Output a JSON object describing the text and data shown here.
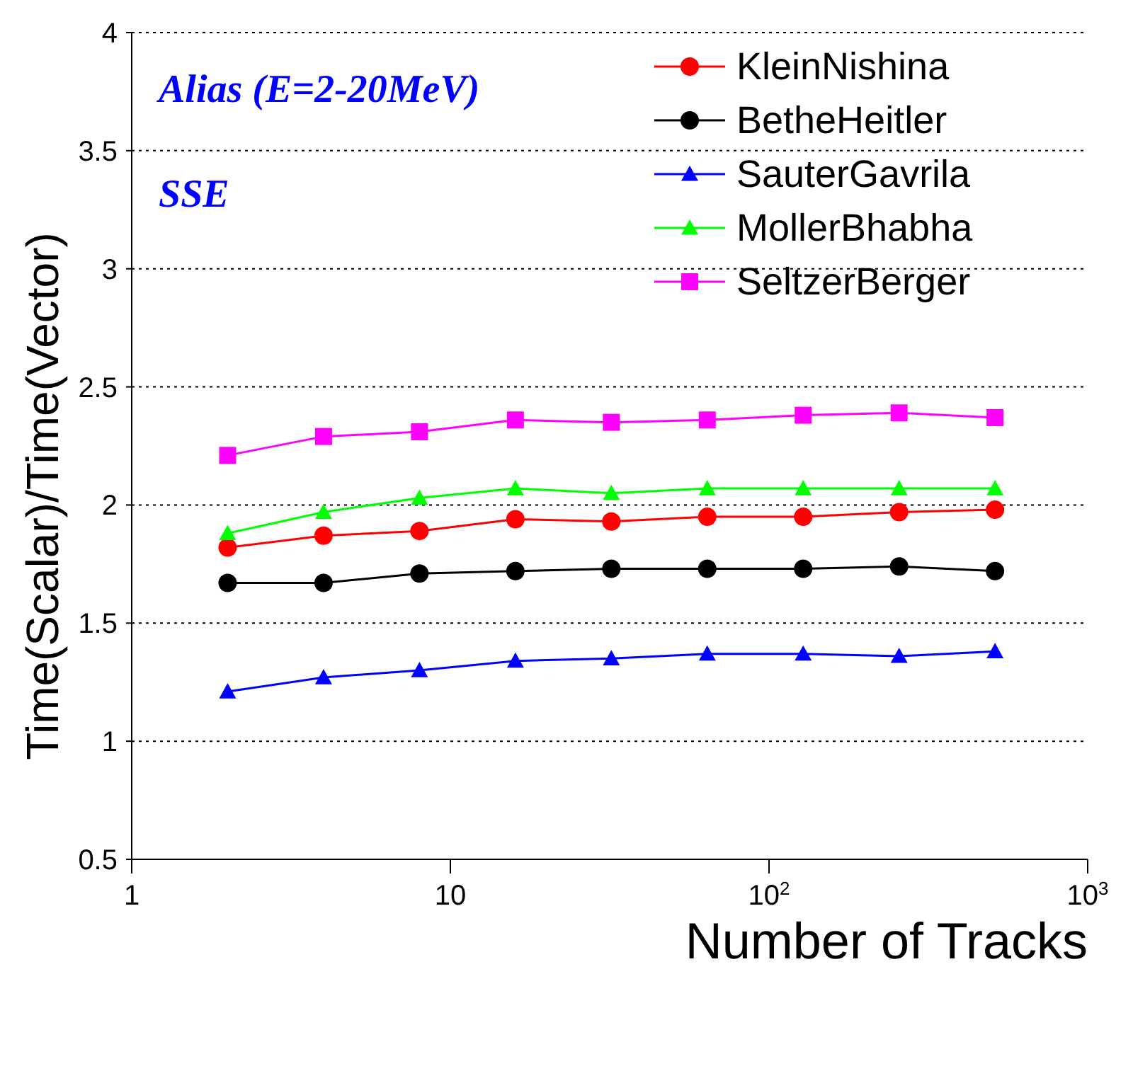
{
  "chart_data": {
    "type": "line",
    "xlabel": "Number of Tracks",
    "ylabel": "Time(Scalar)/Time(Vector)",
    "log": "x",
    "grid": "y",
    "legend": "top right",
    "line_style": "solid",
    "annotations": [
      "Alias (E=2-20MeV)",
      "SSE"
    ],
    "x": [
      2,
      4,
      8,
      16,
      32,
      64,
      128,
      256,
      512
    ],
    "xlim": [
      1,
      1000
    ],
    "xticks": [
      1,
      10,
      {
        "value": 100,
        "label": "10$^{2}$"
      },
      {
        "value": 1000,
        "label": "10$^{3}$"
      }
    ],
    "ylim": [
      0.5,
      4
    ],
    "yticks": [
      0.5,
      1,
      1.5,
      2,
      2.5,
      3,
      3.5,
      4
    ],
    "series": [
      {
        "name": "KleinNishina",
        "color": "#ff0000",
        "marker": "circle",
        "values": [
          1.82,
          1.87,
          1.89,
          1.94,
          1.93,
          1.95,
          1.95,
          1.97,
          1.98
        ]
      },
      {
        "name": "BetheHeitler",
        "color": "#000000",
        "marker": "circle",
        "values": [
          1.67,
          1.67,
          1.71,
          1.72,
          1.73,
          1.73,
          1.73,
          1.74,
          1.72
        ]
      },
      {
        "name": "SauterGavrila",
        "color": "#0000ff",
        "marker": "triangle",
        "values": [
          1.21,
          1.27,
          1.3,
          1.34,
          1.35,
          1.37,
          1.37,
          1.36,
          1.38
        ]
      },
      {
        "name": "MollerBhabha",
        "color": "#00ff00",
        "marker": "triangle",
        "values": [
          1.88,
          1.97,
          2.03,
          2.07,
          2.05,
          2.07,
          2.07,
          2.07,
          2.07
        ]
      },
      {
        "name": "SeltzerBerger",
        "color": "#ff00ff",
        "marker": "square",
        "values": [
          2.21,
          2.29,
          2.31,
          2.36,
          2.35,
          2.36,
          2.38,
          2.39,
          2.37
        ]
      }
    ]
  }
}
